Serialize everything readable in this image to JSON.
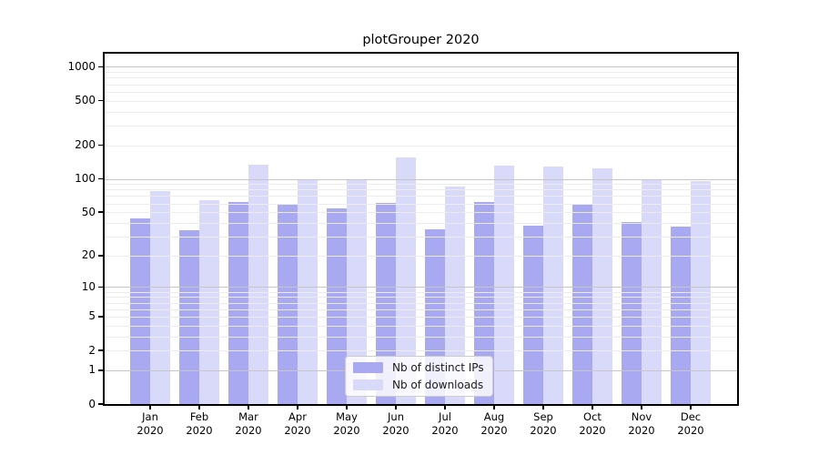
{
  "title": "plotGrouper 2020",
  "legend": {
    "items": [
      {
        "label": "Nb of distinct IPs",
        "color": "#a9a9f2"
      },
      {
        "label": "Nb of downloads",
        "color": "#d9d9fa"
      }
    ]
  },
  "chart_data": {
    "type": "bar",
    "title": "plotGrouper 2020",
    "categories": [
      "Jan 2020",
      "Feb 2020",
      "Mar 2020",
      "Apr 2020",
      "May 2020",
      "Jun 2020",
      "Jul 2020",
      "Aug 2020",
      "Sep 2020",
      "Oct 2020",
      "Nov 2020",
      "Dec 2020"
    ],
    "series": [
      {
        "name": "Nb of distinct IPs",
        "color": "#a9a9f2",
        "values": [
          44,
          34,
          62,
          58,
          54,
          61,
          35,
          62,
          38,
          60,
          41,
          37
        ]
      },
      {
        "name": "Nb of downloads",
        "color": "#d9d9fa",
        "values": [
          78,
          64,
          134,
          97,
          100,
          155,
          85,
          131,
          130,
          125,
          100,
          95
        ]
      }
    ],
    "xlabel": "",
    "ylabel": "",
    "yscale": "log1p",
    "ylim": [
      0,
      1300
    ],
    "yticks": [
      1000,
      500,
      200,
      100,
      50,
      20,
      10,
      5,
      2,
      1,
      0
    ],
    "grid": true,
    "grid_major_color": "#c6c6c6",
    "grid_minor_color": "#ececec",
    "legend_position": "lower center inside",
    "background": "#ffffff"
  }
}
